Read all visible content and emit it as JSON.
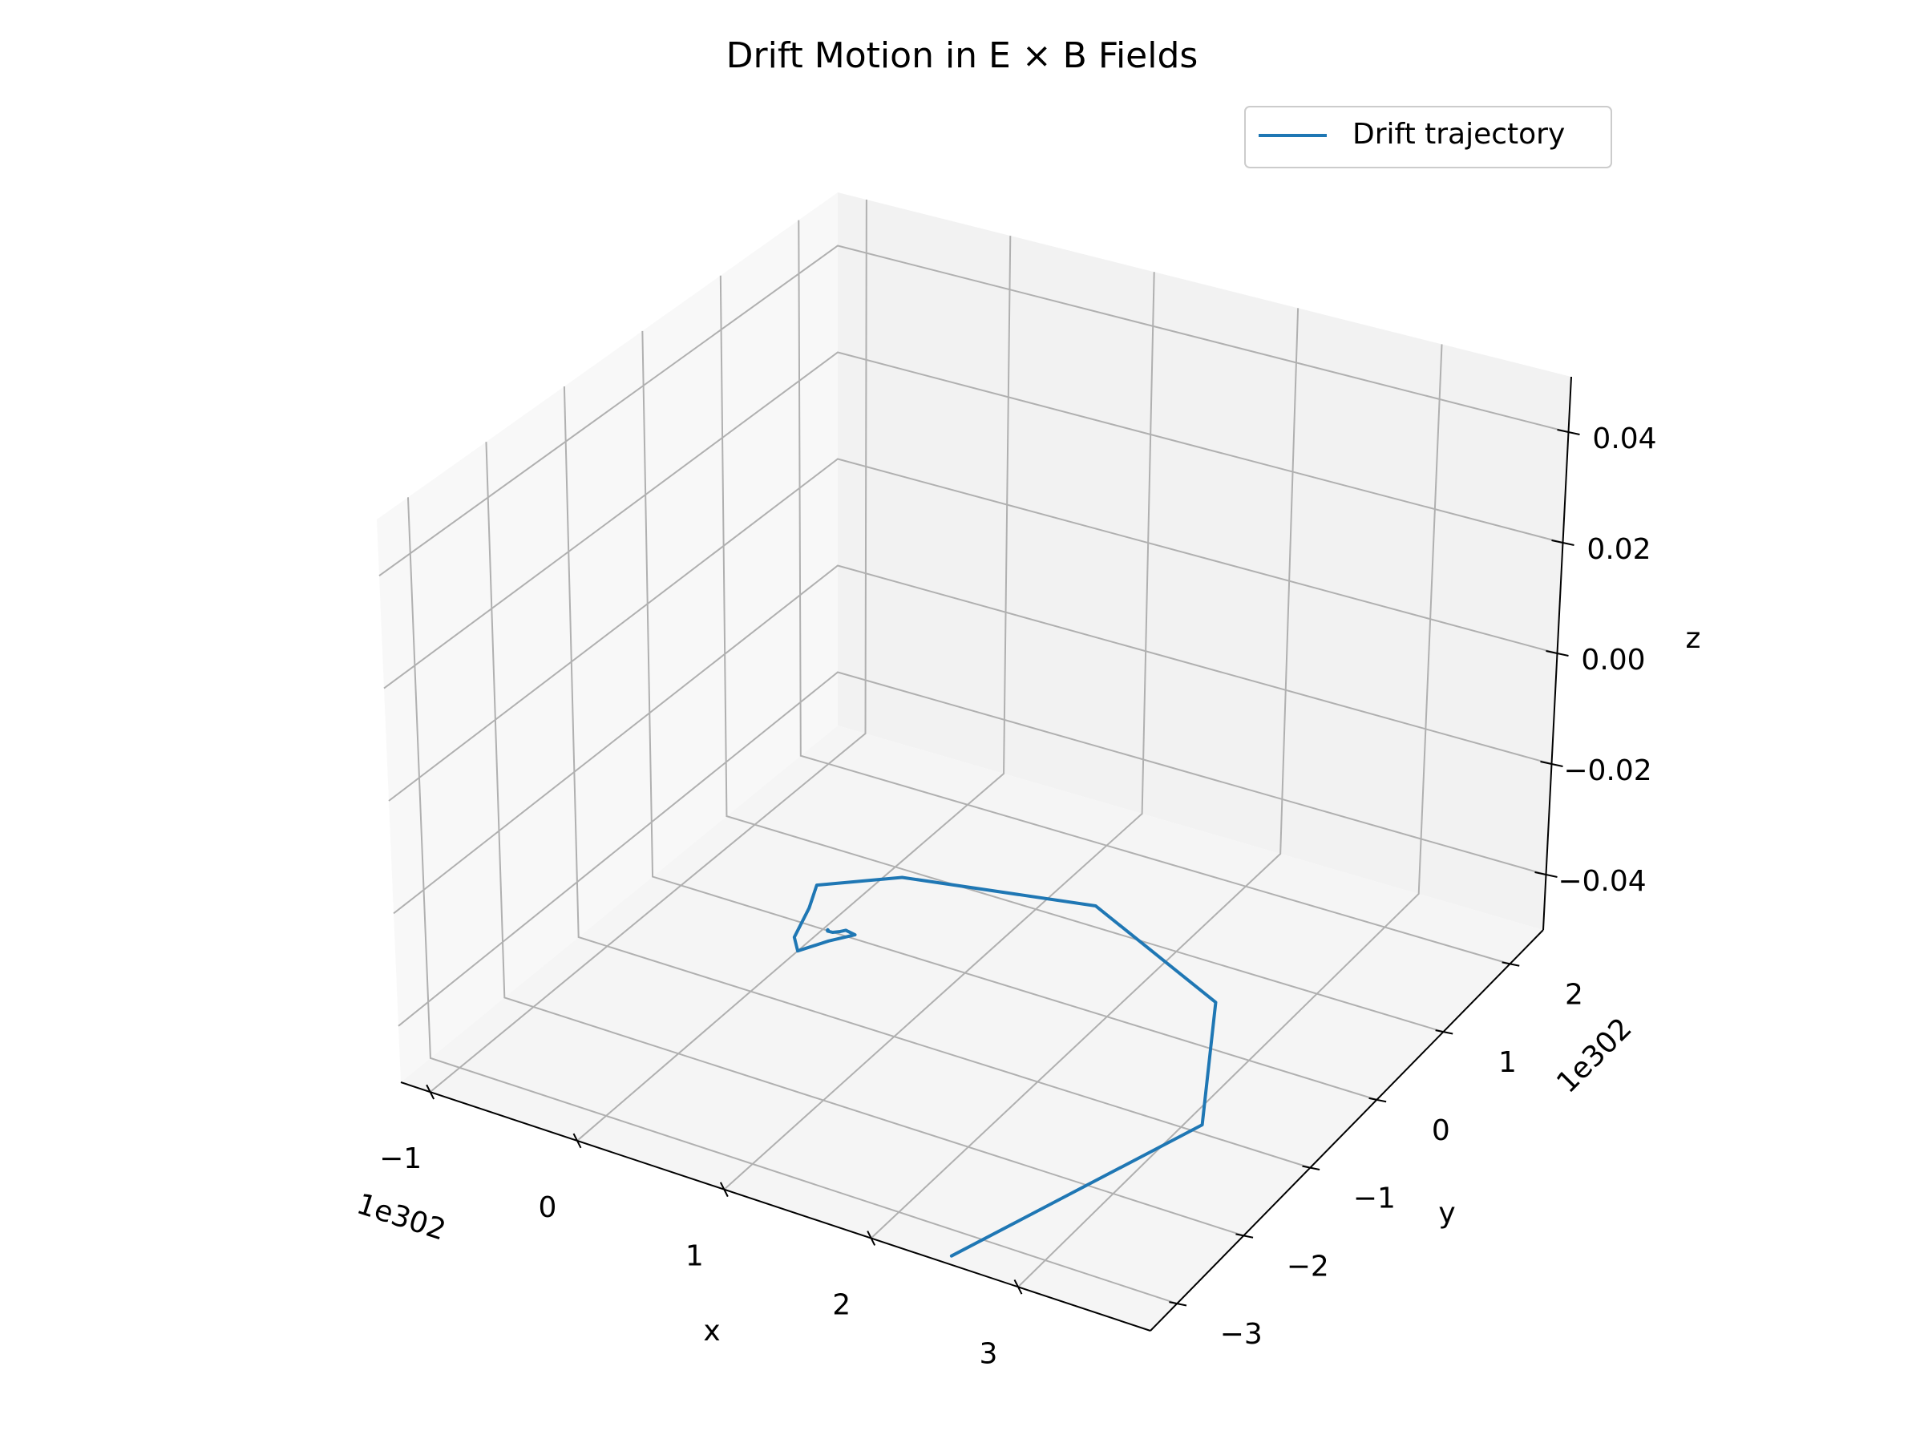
{
  "chart_data": {
    "type": "line",
    "projection": "3d",
    "title": "Drift Motion in E × B Fields",
    "xlabel": "x",
    "ylabel": "y",
    "zlabel": "z",
    "x_offset_text": "1e302",
    "y_offset_text": "1e302",
    "x_ticks": [
      "−1",
      "0",
      "1",
      "2",
      "3"
    ],
    "y_ticks": [
      "−3",
      "−2",
      "−1",
      "0",
      "1",
      "2"
    ],
    "z_ticks": [
      "−0.04",
      "−0.02",
      "0.00",
      "0.02",
      "0.04"
    ],
    "xlim": [
      -1.2,
      3.9
    ],
    "ylim": [
      -3.4,
      2.5
    ],
    "zlim": [
      -0.05,
      0.05
    ],
    "grid": true,
    "legend_position": "upper right",
    "series": [
      {
        "name": "Drift trajectory",
        "color": "#1f77b4",
        "x": [
          0.035,
          0.032,
          0.028,
          0.03,
          0.035,
          0.07,
          0.1,
          0.125,
          0.2,
          0.1,
          0.0,
          -0.1,
          -0.2,
          -0.3,
          0.1,
          1.3,
          2.5,
          3.1,
          2.5
        ],
        "y": [
          0.0,
          0.008,
          0.01,
          0.002,
          -0.006,
          -0.002,
          0.03,
          0.07,
          0.05,
          -0.12,
          -0.35,
          -0.2,
          0.2,
          0.5,
          0.9,
          1.25,
          0.55,
          -0.9,
          -3.3
        ],
        "z": [
          0,
          0,
          0,
          0,
          0,
          0,
          0,
          0,
          0,
          0,
          0,
          0,
          0,
          0,
          0,
          0,
          0,
          0,
          0
        ]
      }
    ]
  }
}
